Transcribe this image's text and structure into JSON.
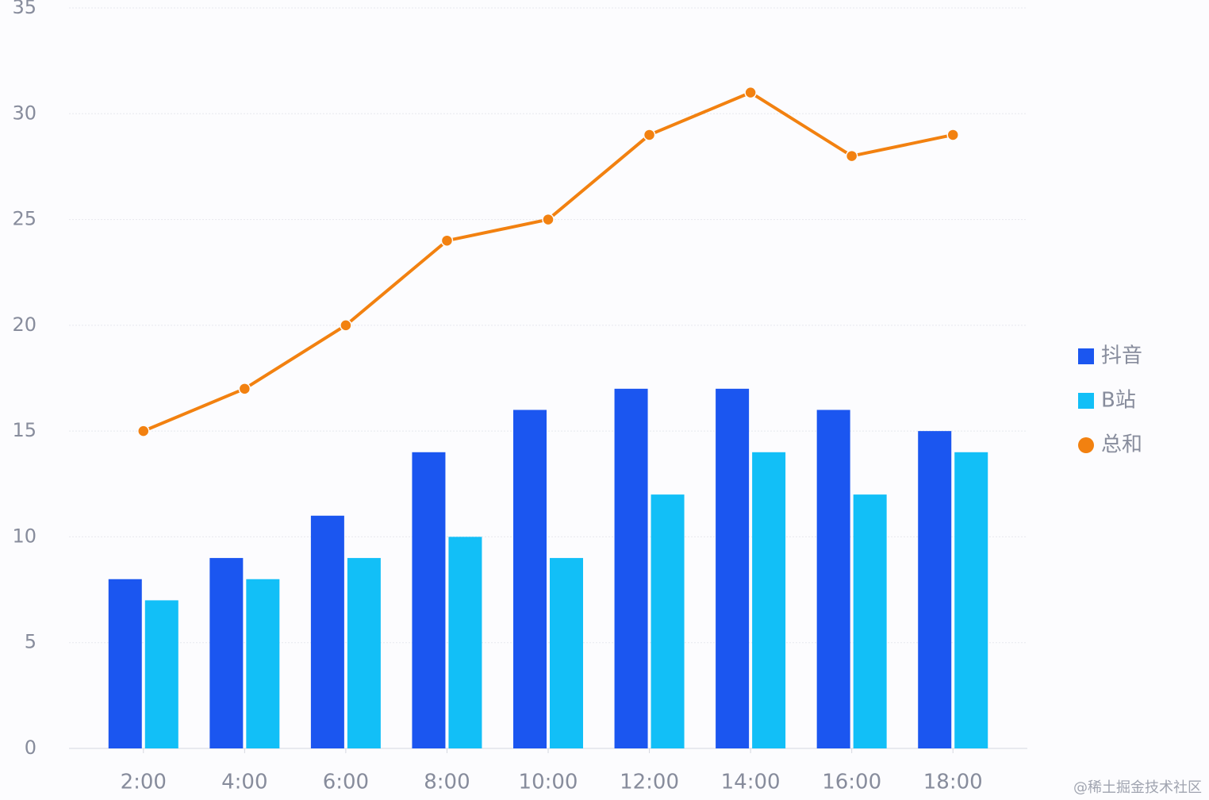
{
  "chart_data": {
    "type": "bar",
    "categories": [
      "2:00",
      "4:00",
      "6:00",
      "8:00",
      "10:00",
      "12:00",
      "14:00",
      "16:00",
      "18:00"
    ],
    "series": [
      {
        "name": "抖音",
        "type": "bar",
        "color": "#1b56f0",
        "values": [
          8,
          9,
          11,
          14,
          16,
          17,
          17,
          16,
          15
        ]
      },
      {
        "name": "B站",
        "type": "bar",
        "color": "#12bff7",
        "values": [
          7,
          8,
          9,
          10,
          9,
          12,
          14,
          12,
          14
        ]
      },
      {
        "name": "总和",
        "type": "line",
        "color": "#f28110",
        "values": [
          15,
          17,
          20,
          24,
          25,
          29,
          31,
          28,
          29
        ]
      }
    ],
    "ylim": [
      0,
      35
    ],
    "yticks": [
      0,
      5,
      10,
      15,
      20,
      25,
      30,
      35
    ],
    "grid": true,
    "legend": "right"
  },
  "watermark": "@稀土掘金技术社区"
}
